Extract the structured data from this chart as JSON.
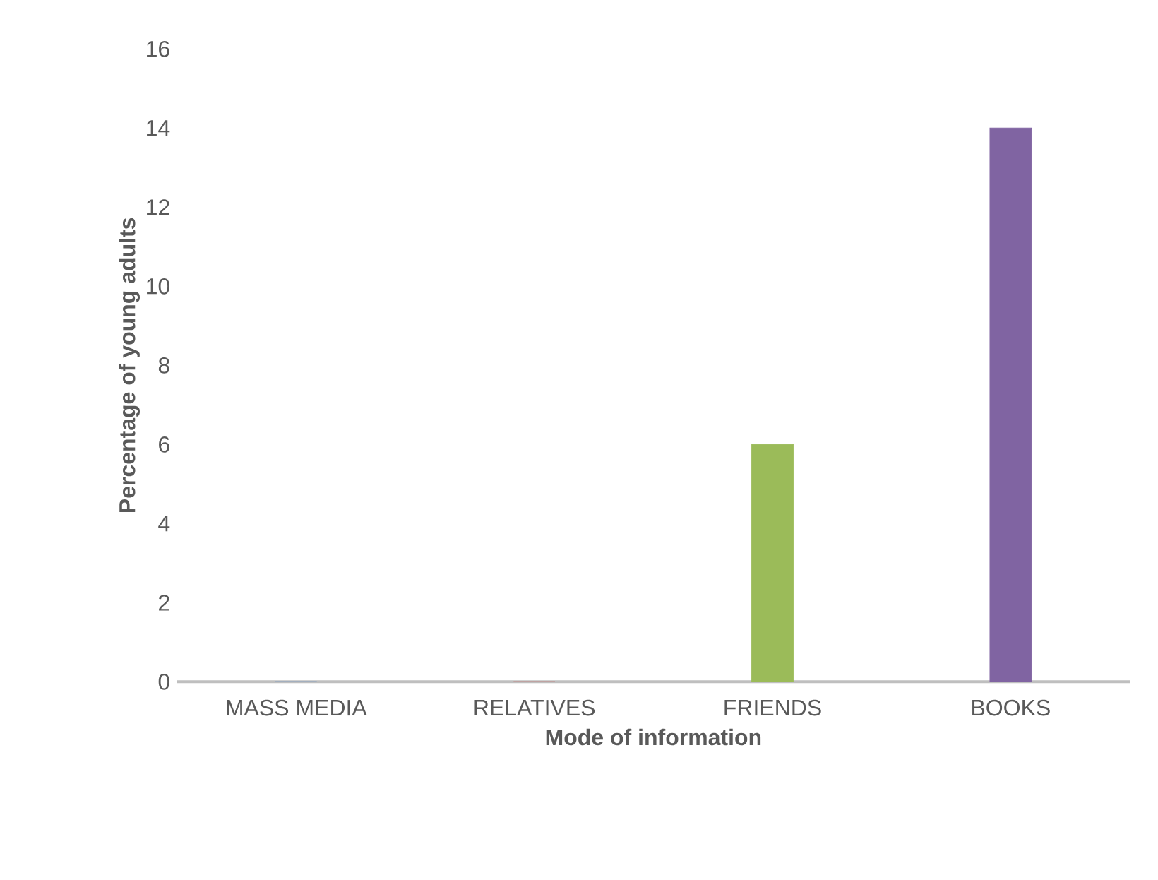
{
  "chart_data": {
    "type": "bar",
    "xlabel": "Mode of information",
    "ylabel": "Percentage of young adults",
    "categories": [
      "MASS MEDIA",
      "RELATIVES",
      "FRIENDS",
      "BOOKS"
    ],
    "values": [
      0,
      0,
      6,
      14
    ],
    "colors": [
      "#4f81bd",
      "#c0504d",
      "#9bbb59",
      "#8064a2"
    ],
    "ylim": [
      0,
      16
    ],
    "yticks": [
      0,
      2,
      4,
      6,
      8,
      10,
      12,
      14,
      16
    ]
  }
}
